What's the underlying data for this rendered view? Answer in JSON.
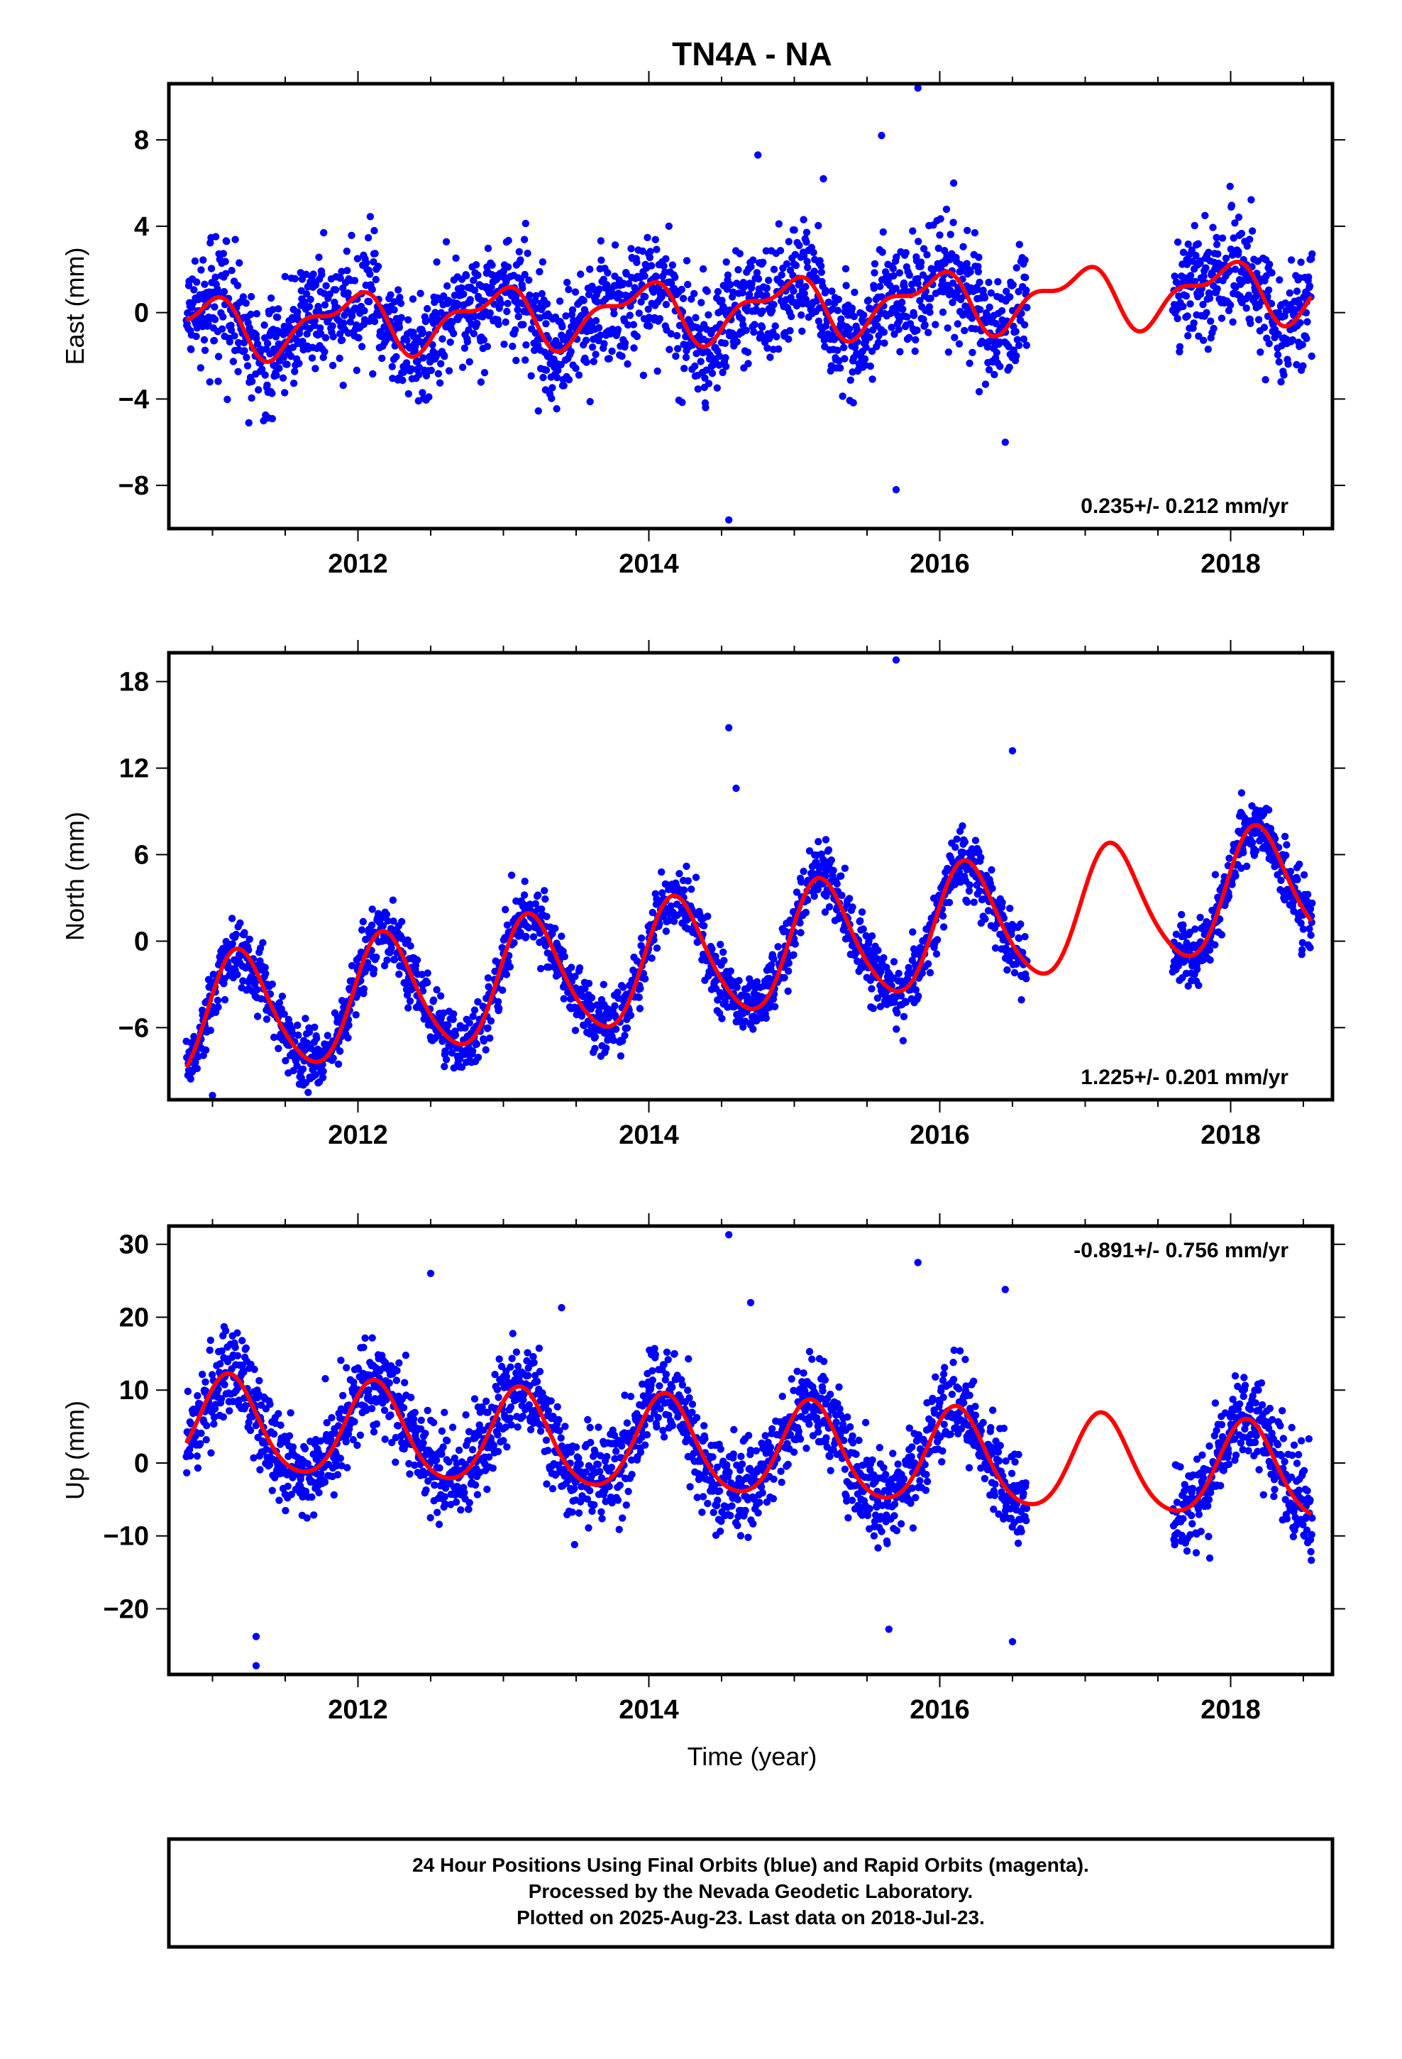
{
  "title": "TN4A - NA",
  "xlabel": "Time (year)",
  "footer": [
    "24 Hour Positions Using Final Orbits (blue) and Rapid Orbits (magenta).",
    "Processed by the Nevada Geodetic Laboratory.",
    "Plotted on 2025-Aug-23. Last data on 2018-Jul-23."
  ],
  "colors": {
    "data": "#0000ff",
    "model": "#ff0000",
    "frame": "#000000"
  },
  "chart_data": [
    {
      "type": "scatter",
      "ylabel": "East (mm)",
      "rate": "0.235+/- 0.212 mm/yr",
      "xlim": [
        2010.7,
        2018.7
      ],
      "ylim": [
        -10,
        10.6
      ],
      "xticks": [
        2012,
        2014,
        2016,
        2018
      ],
      "yticks": [
        -8,
        -4,
        0,
        4,
        8
      ],
      "gaps": [
        [
          2016.6,
          2017.6
        ]
      ],
      "model": {
        "trend": 0.235,
        "offset": 0.2,
        "period1": {
          "amp": 1.2,
          "phase": 2.0
        },
        "period2": {
          "amp": 0.6,
          "phase": 0.3
        },
        "noise": 1.3
      },
      "outliers": [
        [
          2015.85,
          10.4
        ],
        [
          2014.55,
          -9.6
        ],
        [
          2015.7,
          -8.2
        ],
        [
          2015.6,
          8.2
        ],
        [
          2014.75,
          7.3
        ],
        [
          2016.45,
          -6.0
        ],
        [
          2011.25,
          -5.1
        ],
        [
          2015.2,
          6.2
        ]
      ]
    },
    {
      "type": "scatter",
      "ylabel": "North (mm)",
      "rate": "1.225+/- 0.201 mm/yr",
      "xlim": [
        2010.7,
        2018.7
      ],
      "ylim": [
        -11,
        20
      ],
      "xticks": [
        2012,
        2014,
        2016,
        2018
      ],
      "yticks": [
        -6,
        0,
        6,
        12,
        18
      ],
      "gaps": [
        [
          2016.6,
          2017.6
        ]
      ],
      "model": {
        "trend": 1.225,
        "offset": -0.8,
        "period1": {
          "amp": 4.2,
          "phase": 0.4
        },
        "period2": {
          "amp": 0.5,
          "phase": 0.0
        },
        "noise": 1.1
      },
      "outliers": [
        [
          2015.7,
          19.5
        ],
        [
          2014.55,
          14.8
        ],
        [
          2011.0,
          -10.7
        ],
        [
          2014.6,
          10.6
        ],
        [
          2016.5,
          13.2
        ]
      ]
    },
    {
      "type": "scatter",
      "ylabel": "Up (mm)",
      "rate": "-0.891+/- 0.756 mm/yr",
      "xlim": [
        2010.7,
        2018.7
      ],
      "ylim": [
        -29,
        32.5
      ],
      "xticks": [
        2012,
        2014,
        2016,
        2018
      ],
      "yticks": [
        -20,
        -10,
        0,
        10,
        20,
        30
      ],
      "gaps": [
        [
          2016.6,
          2017.6
        ]
      ],
      "model": {
        "trend": -0.891,
        "offset": 1.8,
        "period1": {
          "amp": 6.5,
          "phase": 0.85
        },
        "period2": {
          "amp": 0.8,
          "phase": 0.3
        },
        "noise": 3.2
      },
      "outliers": [
        [
          2014.55,
          31.3
        ],
        [
          2012.5,
          26.0
        ],
        [
          2015.85,
          27.5
        ],
        [
          2016.45,
          23.8
        ],
        [
          2011.3,
          -27.8
        ],
        [
          2011.3,
          -23.8
        ],
        [
          2015.65,
          -22.8
        ],
        [
          2016.5,
          -24.5
        ],
        [
          2013.4,
          21.3
        ],
        [
          2014.7,
          22.0
        ]
      ]
    }
  ]
}
